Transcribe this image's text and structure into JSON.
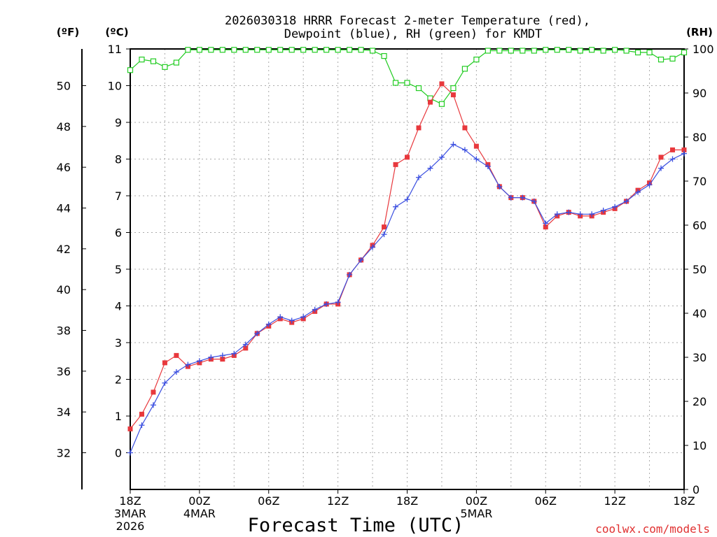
{
  "chart_data": {
    "type": "line",
    "title_line1": "2026030318 HRRR Forecast 2-meter Temperature (red),",
    "title_line2": "Dewpoint (blue), RH (green) for KMDT",
    "xlabel": "Forecast Time (UTC)",
    "credit": "coolwx.com/models",
    "unit_f": "(ºF)",
    "unit_c": "(ºC)",
    "unit_rh": "(RH)",
    "x_range_hours": [
      0,
      48
    ],
    "c_range": [
      -1,
      11
    ],
    "rh_range": [
      0,
      100
    ],
    "c_ticks": [
      0,
      1,
      2,
      3,
      4,
      5,
      6,
      7,
      8,
      9,
      10,
      11
    ],
    "f_ticks": [
      32,
      34,
      36,
      38,
      40,
      42,
      44,
      46,
      48,
      50
    ],
    "rh_ticks": [
      0,
      10,
      20,
      30,
      40,
      50,
      60,
      70,
      80,
      90,
      100
    ],
    "x_ticks": [
      {
        "hour": 0,
        "lines": [
          "18Z",
          "3MAR",
          "2026"
        ]
      },
      {
        "hour": 6,
        "lines": [
          "00Z",
          "4MAR"
        ]
      },
      {
        "hour": 12,
        "lines": [
          "06Z"
        ]
      },
      {
        "hour": 18,
        "lines": [
          "12Z"
        ]
      },
      {
        "hour": 24,
        "lines": [
          "18Z"
        ]
      },
      {
        "hour": 30,
        "lines": [
          "00Z",
          "5MAR"
        ]
      },
      {
        "hour": 36,
        "lines": [
          "06Z"
        ]
      },
      {
        "hour": 42,
        "lines": [
          "12Z"
        ]
      },
      {
        "hour": 48,
        "lines": [
          "18Z"
        ]
      }
    ],
    "series": [
      {
        "name": "Temperature",
        "units": "C",
        "color": "#e8383d",
        "marker": "square-filled",
        "values": [
          0.65,
          1.05,
          1.65,
          2.45,
          2.65,
          2.35,
          2.45,
          2.55,
          2.55,
          2.65,
          2.85,
          3.25,
          3.45,
          3.65,
          3.55,
          3.65,
          3.85,
          4.05,
          4.05,
          4.85,
          5.25,
          5.65,
          6.15,
          7.85,
          8.05,
          8.85,
          9.55,
          10.05,
          9.75,
          8.85,
          8.35,
          7.85,
          7.25,
          6.95,
          6.95,
          6.85,
          6.15,
          6.45,
          6.55,
          6.45,
          6.45,
          6.55,
          6.65,
          6.85,
          7.15,
          7.35,
          8.05,
          8.25,
          8.25
        ]
      },
      {
        "name": "Dewpoint",
        "units": "C",
        "color": "#3b4fe0",
        "marker": "plus",
        "values": [
          0.0,
          0.75,
          1.3,
          1.9,
          2.2,
          2.4,
          2.5,
          2.6,
          2.65,
          2.7,
          2.95,
          3.25,
          3.5,
          3.7,
          3.6,
          3.7,
          3.9,
          4.05,
          4.1,
          4.85,
          5.25,
          5.6,
          5.95,
          6.7,
          6.9,
          7.5,
          7.75,
          8.05,
          8.4,
          8.25,
          8.0,
          7.8,
          7.25,
          6.95,
          6.95,
          6.85,
          6.25,
          6.5,
          6.55,
          6.5,
          6.5,
          6.6,
          6.7,
          6.85,
          7.1,
          7.3,
          7.75,
          8.0,
          8.15
        ]
      },
      {
        "name": "RH",
        "units": "%",
        "color": "#22cc22",
        "marker": "square-open",
        "values": [
          95.2,
          97.6,
          97.2,
          95.9,
          96.9,
          99.8,
          99.8,
          99.8,
          99.8,
          99.8,
          99.8,
          99.8,
          99.8,
          99.8,
          99.8,
          99.8,
          99.8,
          99.8,
          99.8,
          99.8,
          99.8,
          99.6,
          98.4,
          92.3,
          92.3,
          91.1,
          88.8,
          87.5,
          91.1,
          95.5,
          97.6,
          99.6,
          99.6,
          99.6,
          99.6,
          99.6,
          99.8,
          99.8,
          99.8,
          99.6,
          99.8,
          99.6,
          99.8,
          99.6,
          99.2,
          99.2,
          97.6,
          97.8,
          99.2
        ]
      }
    ]
  }
}
